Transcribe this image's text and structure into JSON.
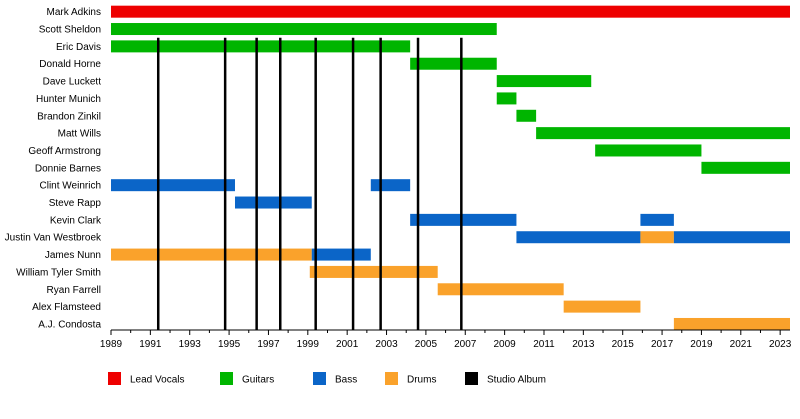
{
  "chart_data": {
    "type": "timeline",
    "x_ticks": [
      "1989",
      "1991",
      "1993",
      "1995",
      "1997",
      "1999",
      "2001",
      "2003",
      "2005",
      "2007",
      "2009",
      "2011",
      "2013",
      "2015",
      "2017",
      "2019",
      "2021",
      "2023"
    ],
    "xlim": [
      1989,
      2023.5
    ],
    "members": [
      {
        "name": "Mark Adkins",
        "bars": [
          {
            "role": "Lead Vocals",
            "start": 1989,
            "end": 2023.5
          }
        ]
      },
      {
        "name": "Scott Sheldon",
        "bars": [
          {
            "role": "Guitars",
            "start": 1989,
            "end": 2008.6
          }
        ]
      },
      {
        "name": "Eric Davis",
        "bars": [
          {
            "role": "Guitars",
            "start": 1989,
            "end": 2004.2
          }
        ]
      },
      {
        "name": "Donald Horne",
        "bars": [
          {
            "role": "Guitars",
            "start": 2004.2,
            "end": 2008.6
          }
        ]
      },
      {
        "name": "Dave Luckett",
        "bars": [
          {
            "role": "Guitars",
            "start": 2008.6,
            "end": 2013.4
          }
        ]
      },
      {
        "name": "Hunter Munich",
        "bars": [
          {
            "role": "Guitars",
            "start": 2008.6,
            "end": 2009.6
          }
        ]
      },
      {
        "name": "Brandon Zinkil",
        "bars": [
          {
            "role": "Guitars",
            "start": 2009.6,
            "end": 2010.6
          }
        ]
      },
      {
        "name": "Matt Wills",
        "bars": [
          {
            "role": "Guitars",
            "start": 2010.6,
            "end": 2023.5
          }
        ]
      },
      {
        "name": "Geoff Armstrong",
        "bars": [
          {
            "role": "Guitars",
            "start": 2013.6,
            "end": 2019
          }
        ]
      },
      {
        "name": "Donnie Barnes",
        "bars": [
          {
            "role": "Guitars",
            "start": 2019,
            "end": 2023.5
          }
        ]
      },
      {
        "name": "Clint Weinrich",
        "bars": [
          {
            "role": "Bass",
            "start": 1989,
            "end": 1995.3
          },
          {
            "role": "Bass",
            "start": 2002.2,
            "end": 2004.2
          }
        ]
      },
      {
        "name": "Steve Rapp",
        "bars": [
          {
            "role": "Bass",
            "start": 1995.3,
            "end": 1999.2
          }
        ]
      },
      {
        "name": "Kevin Clark",
        "bars": [
          {
            "role": "Bass",
            "start": 2004.2,
            "end": 2009.6
          },
          {
            "role": "Bass",
            "start": 2015.9,
            "end": 2017.6
          }
        ]
      },
      {
        "name": "Justin Van Westbroek",
        "bars": [
          {
            "role": "Bass",
            "start": 2009.6,
            "end": 2015.9
          },
          {
            "role": "Drums",
            "start": 2015.9,
            "end": 2017.6
          },
          {
            "role": "Bass",
            "start": 2017.6,
            "end": 2023.5
          }
        ]
      },
      {
        "name": "James Nunn",
        "bars": [
          {
            "role": "Drums",
            "start": 1989,
            "end": 1999.2
          },
          {
            "role": "Bass",
            "start": 1999.2,
            "end": 2002.2
          }
        ]
      },
      {
        "name": "William Tyler Smith",
        "bars": [
          {
            "role": "Drums",
            "start": 1999.1,
            "end": 2005.6
          }
        ]
      },
      {
        "name": "Ryan Farrell",
        "bars": [
          {
            "role": "Drums",
            "start": 2005.6,
            "end": 2012
          }
        ]
      },
      {
        "name": "Alex Flamsteed",
        "bars": [
          {
            "role": "Drums",
            "start": 2012,
            "end": 2015.9
          }
        ]
      },
      {
        "name": "A.J. Condosta",
        "bars": [
          {
            "role": "Drums",
            "start": 2017.6,
            "end": 2023.5
          }
        ]
      }
    ],
    "albums": [
      1991.4,
      1994.8,
      1996.4,
      1997.6,
      1999.4,
      2001.3,
      2002.7,
      2004.6,
      2006.8
    ],
    "legend": [
      {
        "label": "Lead Vocals",
        "color": "#ee0000"
      },
      {
        "label": "Guitars",
        "color": "#00b500"
      },
      {
        "label": "Bass",
        "color": "#0b65c8"
      },
      {
        "label": "Drums",
        "color": "#faa22b"
      },
      {
        "label": "Studio Album",
        "color": "#000000"
      }
    ],
    "legend_position": "bottom"
  }
}
